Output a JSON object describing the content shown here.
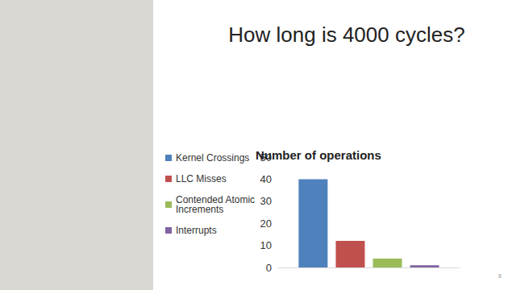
{
  "slide": {
    "heading": "How long is 4000 cycles?",
    "page_number": 8
  },
  "chart_data": {
    "type": "bar",
    "title": "Number of operations",
    "categories": [
      null
    ],
    "series": [
      {
        "name": "Kernel Crossings",
        "color": "#4f81bd",
        "values": [
          40
        ]
      },
      {
        "name": "LLC Misses",
        "color": "#c0504d",
        "values": [
          12
        ]
      },
      {
        "name": "Contended Atomic Increments",
        "color": "#9bbb59",
        "values": [
          4
        ]
      },
      {
        "name": "Interrupts",
        "color": "#8064a2",
        "values": [
          1
        ]
      }
    ],
    "ylim": [
      0,
      50
    ],
    "yticks": [
      0,
      10,
      20,
      30,
      40,
      50
    ],
    "grid": false,
    "legend": "left",
    "tick_labels": "y"
  }
}
